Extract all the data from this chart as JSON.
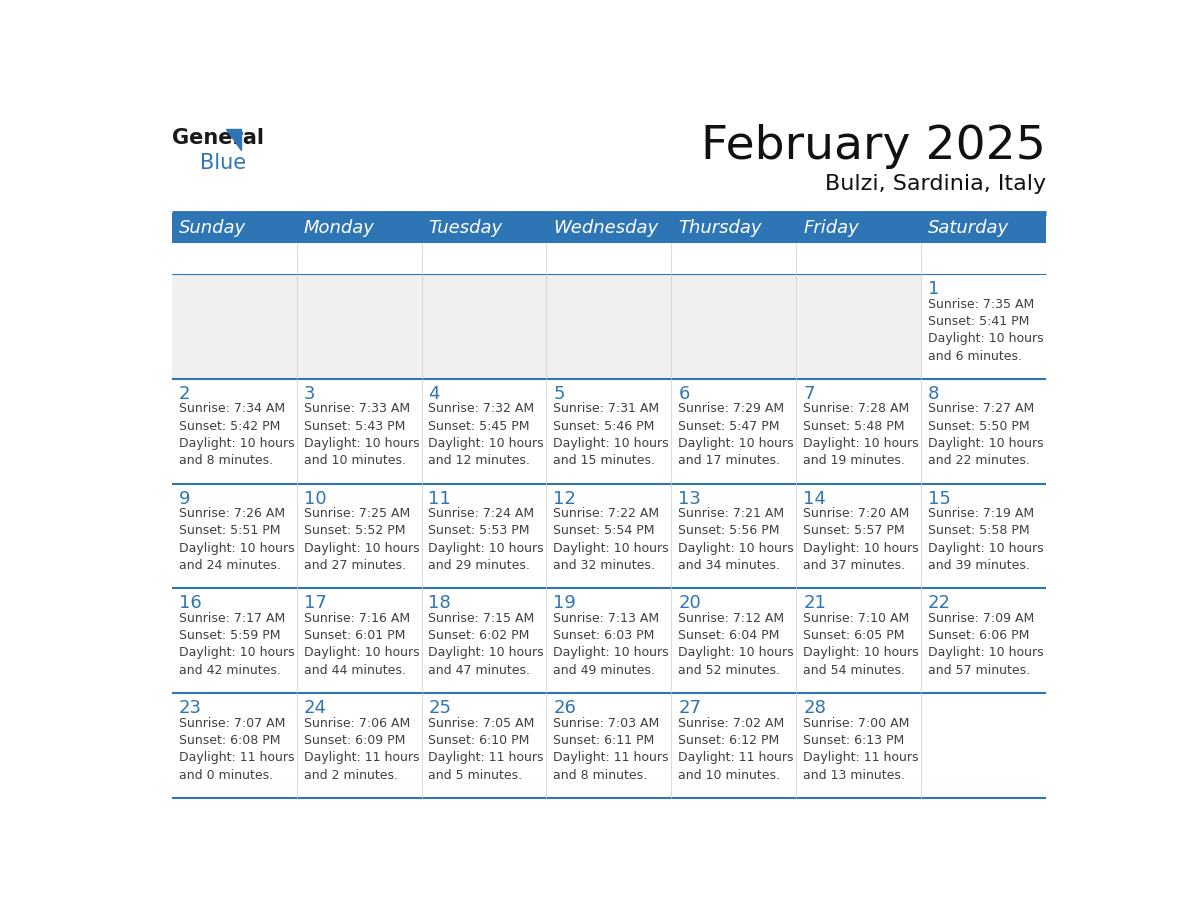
{
  "title": "February 2025",
  "subtitle": "Bulzi, Sardinia, Italy",
  "days_of_week": [
    "Sunday",
    "Monday",
    "Tuesday",
    "Wednesday",
    "Thursday",
    "Friday",
    "Saturday"
  ],
  "header_bg": "#2E75B6",
  "header_text": "#FFFFFF",
  "cell_bg_white": "#FFFFFF",
  "cell_bg_gray": "#F0F0F0",
  "day_num_color": "#2E75B6",
  "text_color": "#404040",
  "line_color": "#2E75B6",
  "calendar_data": [
    [
      null,
      null,
      null,
      null,
      null,
      null,
      {
        "day": 1,
        "sunrise": "7:35 AM",
        "sunset": "5:41 PM",
        "daylight": "10 hours\nand 6 minutes."
      }
    ],
    [
      {
        "day": 2,
        "sunrise": "7:34 AM",
        "sunset": "5:42 PM",
        "daylight": "10 hours\nand 8 minutes."
      },
      {
        "day": 3,
        "sunrise": "7:33 AM",
        "sunset": "5:43 PM",
        "daylight": "10 hours\nand 10 minutes."
      },
      {
        "day": 4,
        "sunrise": "7:32 AM",
        "sunset": "5:45 PM",
        "daylight": "10 hours\nand 12 minutes."
      },
      {
        "day": 5,
        "sunrise": "7:31 AM",
        "sunset": "5:46 PM",
        "daylight": "10 hours\nand 15 minutes."
      },
      {
        "day": 6,
        "sunrise": "7:29 AM",
        "sunset": "5:47 PM",
        "daylight": "10 hours\nand 17 minutes."
      },
      {
        "day": 7,
        "sunrise": "7:28 AM",
        "sunset": "5:48 PM",
        "daylight": "10 hours\nand 19 minutes."
      },
      {
        "day": 8,
        "sunrise": "7:27 AM",
        "sunset": "5:50 PM",
        "daylight": "10 hours\nand 22 minutes."
      }
    ],
    [
      {
        "day": 9,
        "sunrise": "7:26 AM",
        "sunset": "5:51 PM",
        "daylight": "10 hours\nand 24 minutes."
      },
      {
        "day": 10,
        "sunrise": "7:25 AM",
        "sunset": "5:52 PM",
        "daylight": "10 hours\nand 27 minutes."
      },
      {
        "day": 11,
        "sunrise": "7:24 AM",
        "sunset": "5:53 PM",
        "daylight": "10 hours\nand 29 minutes."
      },
      {
        "day": 12,
        "sunrise": "7:22 AM",
        "sunset": "5:54 PM",
        "daylight": "10 hours\nand 32 minutes."
      },
      {
        "day": 13,
        "sunrise": "7:21 AM",
        "sunset": "5:56 PM",
        "daylight": "10 hours\nand 34 minutes."
      },
      {
        "day": 14,
        "sunrise": "7:20 AM",
        "sunset": "5:57 PM",
        "daylight": "10 hours\nand 37 minutes."
      },
      {
        "day": 15,
        "sunrise": "7:19 AM",
        "sunset": "5:58 PM",
        "daylight": "10 hours\nand 39 minutes."
      }
    ],
    [
      {
        "day": 16,
        "sunrise": "7:17 AM",
        "sunset": "5:59 PM",
        "daylight": "10 hours\nand 42 minutes."
      },
      {
        "day": 17,
        "sunrise": "7:16 AM",
        "sunset": "6:01 PM",
        "daylight": "10 hours\nand 44 minutes."
      },
      {
        "day": 18,
        "sunrise": "7:15 AM",
        "sunset": "6:02 PM",
        "daylight": "10 hours\nand 47 minutes."
      },
      {
        "day": 19,
        "sunrise": "7:13 AM",
        "sunset": "6:03 PM",
        "daylight": "10 hours\nand 49 minutes."
      },
      {
        "day": 20,
        "sunrise": "7:12 AM",
        "sunset": "6:04 PM",
        "daylight": "10 hours\nand 52 minutes."
      },
      {
        "day": 21,
        "sunrise": "7:10 AM",
        "sunset": "6:05 PM",
        "daylight": "10 hours\nand 54 minutes."
      },
      {
        "day": 22,
        "sunrise": "7:09 AM",
        "sunset": "6:06 PM",
        "daylight": "10 hours\nand 57 minutes."
      }
    ],
    [
      {
        "day": 23,
        "sunrise": "7:07 AM",
        "sunset": "6:08 PM",
        "daylight": "11 hours\nand 0 minutes."
      },
      {
        "day": 24,
        "sunrise": "7:06 AM",
        "sunset": "6:09 PM",
        "daylight": "11 hours\nand 2 minutes."
      },
      {
        "day": 25,
        "sunrise": "7:05 AM",
        "sunset": "6:10 PM",
        "daylight": "11 hours\nand 5 minutes."
      },
      {
        "day": 26,
        "sunrise": "7:03 AM",
        "sunset": "6:11 PM",
        "daylight": "11 hours\nand 8 minutes."
      },
      {
        "day": 27,
        "sunrise": "7:02 AM",
        "sunset": "6:12 PM",
        "daylight": "11 hours\nand 10 minutes."
      },
      {
        "day": 28,
        "sunrise": "7:00 AM",
        "sunset": "6:13 PM",
        "daylight": "11 hours\nand 13 minutes."
      },
      null
    ]
  ],
  "logo_general_color": "#1a1a1a",
  "logo_blue_color": "#2E75B6",
  "logo_triangle_color": "#2E75B6",
  "title_fontsize": 34,
  "subtitle_fontsize": 16,
  "header_fontsize": 13,
  "day_num_fontsize": 13,
  "cell_fontsize": 9
}
